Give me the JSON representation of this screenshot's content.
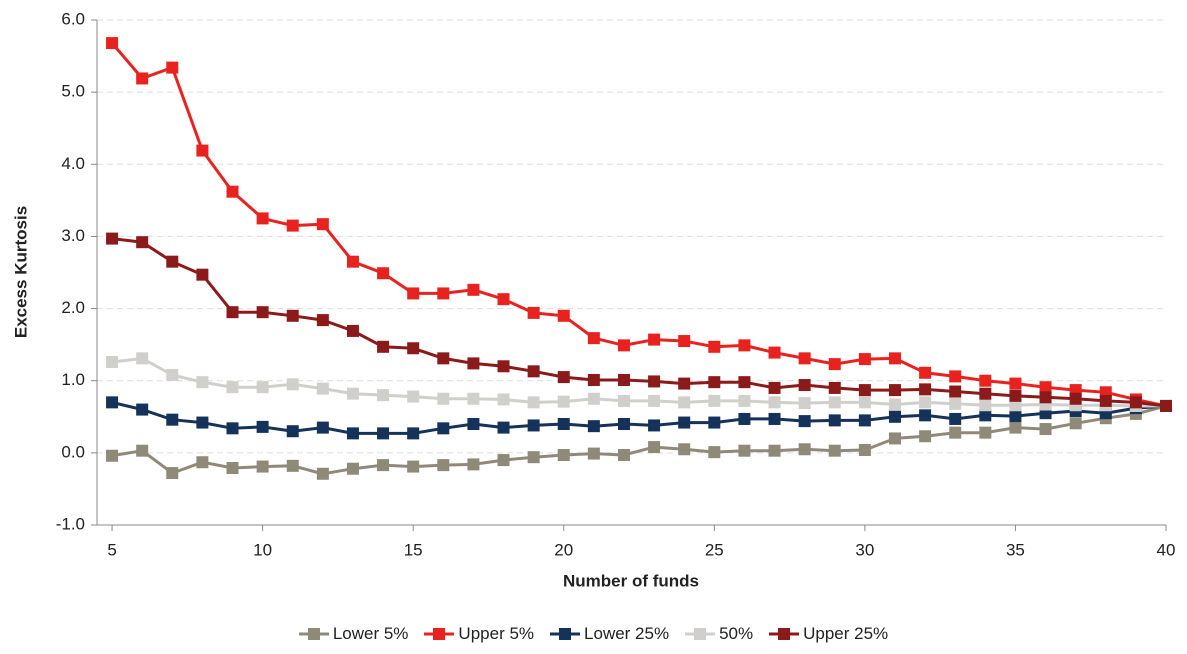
{
  "chart_data": {
    "type": "line",
    "x_label": "Number of funds",
    "y_label": "Excess Kurtosis",
    "x": [
      5,
      6,
      7,
      8,
      9,
      10,
      11,
      12,
      13,
      14,
      15,
      16,
      17,
      18,
      19,
      20,
      21,
      22,
      23,
      24,
      25,
      26,
      27,
      28,
      29,
      30,
      31,
      32,
      33,
      34,
      35,
      36,
      37,
      38,
      39,
      40
    ],
    "series": [
      {
        "name": "Lower 5%",
        "color": "#8f8a78",
        "values": [
          -0.04,
          0.03,
          -0.28,
          -0.13,
          -0.21,
          -0.19,
          -0.18,
          -0.29,
          -0.22,
          -0.17,
          -0.19,
          -0.17,
          -0.16,
          -0.1,
          -0.06,
          -0.03,
          -0.01,
          -0.03,
          0.08,
          0.05,
          0.01,
          0.03,
          0.03,
          0.05,
          0.03,
          0.04,
          0.2,
          0.23,
          0.28,
          0.28,
          0.35,
          0.33,
          0.41,
          0.48,
          0.54,
          0.65
        ]
      },
      {
        "name": "Upper 5%",
        "color": "#e8231f",
        "values": [
          5.68,
          5.19,
          5.34,
          4.19,
          3.62,
          3.25,
          3.15,
          3.17,
          2.65,
          2.49,
          2.21,
          2.21,
          2.26,
          2.13,
          1.94,
          1.9,
          1.59,
          1.49,
          1.57,
          1.55,
          1.47,
          1.49,
          1.39,
          1.31,
          1.23,
          1.3,
          1.31,
          1.11,
          1.06,
          1.0,
          0.96,
          0.91,
          0.87,
          0.84,
          0.74,
          0.65
        ]
      },
      {
        "name": "Lower 25%",
        "color": "#14325a",
        "values": [
          0.7,
          0.6,
          0.46,
          0.42,
          0.34,
          0.36,
          0.3,
          0.35,
          0.27,
          0.27,
          0.27,
          0.34,
          0.4,
          0.35,
          0.38,
          0.4,
          0.37,
          0.4,
          0.38,
          0.42,
          0.42,
          0.47,
          0.47,
          0.44,
          0.45,
          0.45,
          0.5,
          0.52,
          0.47,
          0.52,
          0.51,
          0.55,
          0.58,
          0.55,
          0.62,
          0.65
        ]
      },
      {
        "name": "50%",
        "color": "#d0cfcb",
        "values": [
          1.26,
          1.31,
          1.08,
          0.98,
          0.91,
          0.91,
          0.95,
          0.89,
          0.82,
          0.8,
          0.78,
          0.75,
          0.75,
          0.74,
          0.7,
          0.71,
          0.75,
          0.72,
          0.72,
          0.7,
          0.72,
          0.72,
          0.7,
          0.69,
          0.7,
          0.7,
          0.67,
          0.7,
          0.68,
          0.66,
          0.66,
          0.67,
          0.66,
          0.66,
          0.65,
          0.65
        ]
      },
      {
        "name": "Upper 25%",
        "color": "#8b1a1a",
        "values": [
          2.97,
          2.92,
          2.65,
          2.47,
          1.95,
          1.95,
          1.9,
          1.84,
          1.69,
          1.47,
          1.45,
          1.31,
          1.24,
          1.2,
          1.13,
          1.05,
          1.01,
          1.01,
          0.99,
          0.96,
          0.98,
          0.98,
          0.9,
          0.94,
          0.9,
          0.87,
          0.87,
          0.88,
          0.85,
          0.82,
          0.79,
          0.77,
          0.75,
          0.72,
          0.7,
          0.65
        ]
      }
    ],
    "xlim": [
      4.5,
      40
    ],
    "xticks": [
      5,
      10,
      15,
      20,
      25,
      30,
      35,
      40
    ],
    "ylim": [
      -1,
      6
    ],
    "yticks": [
      {
        "value": -1,
        "label": "-1.0"
      },
      {
        "value": 0,
        "label": "0.0"
      },
      {
        "value": 1,
        "label": "1.0"
      },
      {
        "value": 2,
        "label": "2.0"
      },
      {
        "value": 3,
        "label": "3.0"
      },
      {
        "value": 4,
        "label": "4.0"
      },
      {
        "value": 5,
        "label": "5.0"
      },
      {
        "value": 6,
        "label": "6.0"
      }
    ],
    "grid": true,
    "legend": "bottom"
  }
}
